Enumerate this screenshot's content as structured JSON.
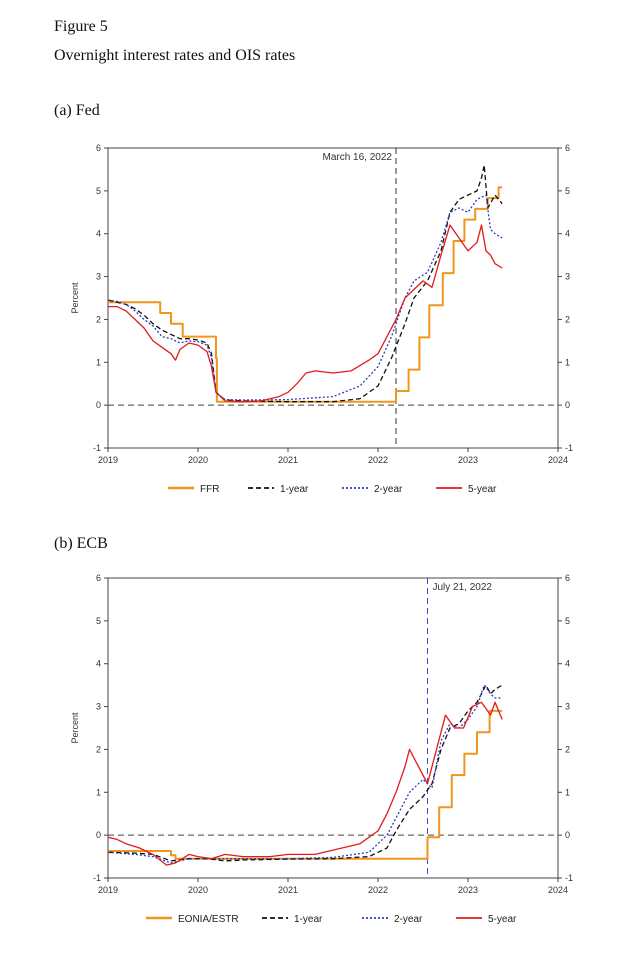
{
  "figure": {
    "number": "Figure 5",
    "caption": "Overnight interest rates and OIS rates"
  },
  "panels": {
    "fed_title": "(a) Fed",
    "ecb_title": "(b) ECB"
  },
  "colors": {
    "policy": "#f0961e",
    "one_year": "#111111",
    "two_year": "#2d3bbf",
    "five_year": "#e01c1c",
    "annot_fed": "#333333",
    "annot_ecb": "#3b4cc0"
  },
  "chart_data": [
    {
      "id": "fed",
      "type": "line",
      "title": "(a) Fed",
      "xlabel": "",
      "ylabel": "Percent",
      "xlim": [
        2019,
        2024
      ],
      "ylim": [
        -1,
        6
      ],
      "xticks": [
        "2019",
        "2020",
        "2021",
        "2022",
        "2023",
        "2024"
      ],
      "yticks": [
        "-1",
        "0",
        "1",
        "2",
        "3",
        "4",
        "5",
        "6"
      ],
      "annotation": {
        "label": "March 16, 2022",
        "x": 2022.2
      },
      "legend": [
        "FFR",
        "1-year",
        "2-year",
        "5-year"
      ],
      "series": [
        {
          "name": "FFR",
          "style": "solid",
          "points": [
            [
              2019.0,
              2.4
            ],
            [
              2019.2,
              2.4
            ],
            [
              2019.2,
              2.4
            ],
            [
              2019.58,
              2.4
            ],
            [
              2019.58,
              2.15
            ],
            [
              2019.7,
              2.15
            ],
            [
              2019.7,
              1.9
            ],
            [
              2019.83,
              1.9
            ],
            [
              2019.83,
              1.6
            ],
            [
              2020.2,
              1.6
            ],
            [
              2020.2,
              1.1
            ],
            [
              2020.21,
              1.1
            ],
            [
              2020.21,
              0.08
            ],
            [
              2022.2,
              0.08
            ],
            [
              2022.2,
              0.33
            ],
            [
              2022.34,
              0.33
            ],
            [
              2022.34,
              0.83
            ],
            [
              2022.46,
              0.83
            ],
            [
              2022.46,
              1.58
            ],
            [
              2022.57,
              1.58
            ],
            [
              2022.57,
              2.33
            ],
            [
              2022.72,
              2.33
            ],
            [
              2022.72,
              3.08
            ],
            [
              2022.84,
              3.08
            ],
            [
              2022.84,
              3.83
            ],
            [
              2022.96,
              3.83
            ],
            [
              2022.96,
              4.33
            ],
            [
              2023.08,
              4.33
            ],
            [
              2023.08,
              4.58
            ],
            [
              2023.22,
              4.58
            ],
            [
              2023.22,
              4.83
            ],
            [
              2023.34,
              4.83
            ],
            [
              2023.34,
              5.08
            ],
            [
              2023.38,
              5.08
            ]
          ]
        },
        {
          "name": "1-year",
          "style": "dash",
          "points": [
            [
              2019.0,
              2.45
            ],
            [
              2019.1,
              2.4
            ],
            [
              2019.2,
              2.35
            ],
            [
              2019.3,
              2.25
            ],
            [
              2019.4,
              2.1
            ],
            [
              2019.5,
              1.9
            ],
            [
              2019.6,
              1.75
            ],
            [
              2019.7,
              1.65
            ],
            [
              2019.8,
              1.55
            ],
            [
              2019.9,
              1.55
            ],
            [
              2020.0,
              1.52
            ],
            [
              2020.1,
              1.45
            ],
            [
              2020.15,
              1.2
            ],
            [
              2020.2,
              0.3
            ],
            [
              2020.3,
              0.12
            ],
            [
              2020.5,
              0.1
            ],
            [
              2021.0,
              0.08
            ],
            [
              2021.5,
              0.08
            ],
            [
              2021.8,
              0.15
            ],
            [
              2022.0,
              0.45
            ],
            [
              2022.15,
              1.1
            ],
            [
              2022.3,
              1.9
            ],
            [
              2022.4,
              2.5
            ],
            [
              2022.55,
              2.9
            ],
            [
              2022.7,
              3.6
            ],
            [
              2022.8,
              4.5
            ],
            [
              2022.9,
              4.8
            ],
            [
              2023.0,
              4.9
            ],
            [
              2023.1,
              5.0
            ],
            [
              2023.15,
              5.3
            ],
            [
              2023.18,
              5.6
            ],
            [
              2023.22,
              4.6
            ],
            [
              2023.3,
              4.9
            ],
            [
              2023.38,
              4.7
            ]
          ]
        },
        {
          "name": "2-year",
          "style": "dot",
          "points": [
            [
              2019.0,
              2.45
            ],
            [
              2019.1,
              2.42
            ],
            [
              2019.2,
              2.35
            ],
            [
              2019.3,
              2.2
            ],
            [
              2019.4,
              2.0
            ],
            [
              2019.5,
              1.85
            ],
            [
              2019.6,
              1.6
            ],
            [
              2019.7,
              1.55
            ],
            [
              2019.8,
              1.45
            ],
            [
              2019.9,
              1.5
            ],
            [
              2020.0,
              1.48
            ],
            [
              2020.1,
              1.4
            ],
            [
              2020.15,
              1.1
            ],
            [
              2020.2,
              0.3
            ],
            [
              2020.3,
              0.13
            ],
            [
              2020.5,
              0.12
            ],
            [
              2021.0,
              0.13
            ],
            [
              2021.5,
              0.2
            ],
            [
              2021.8,
              0.45
            ],
            [
              2022.0,
              0.9
            ],
            [
              2022.15,
              1.6
            ],
            [
              2022.3,
              2.5
            ],
            [
              2022.4,
              2.9
            ],
            [
              2022.55,
              3.1
            ],
            [
              2022.7,
              3.8
            ],
            [
              2022.8,
              4.5
            ],
            [
              2022.9,
              4.6
            ],
            [
              2023.0,
              4.5
            ],
            [
              2023.1,
              4.8
            ],
            [
              2023.2,
              4.9
            ],
            [
              2023.25,
              4.1
            ],
            [
              2023.3,
              4.0
            ],
            [
              2023.38,
              3.9
            ]
          ]
        },
        {
          "name": "5-year",
          "style": "solid",
          "points": [
            [
              2019.0,
              2.3
            ],
            [
              2019.1,
              2.3
            ],
            [
              2019.2,
              2.2
            ],
            [
              2019.3,
              2.0
            ],
            [
              2019.4,
              1.8
            ],
            [
              2019.5,
              1.5
            ],
            [
              2019.6,
              1.35
            ],
            [
              2019.7,
              1.2
            ],
            [
              2019.75,
              1.05
            ],
            [
              2019.8,
              1.3
            ],
            [
              2019.9,
              1.45
            ],
            [
              2020.0,
              1.4
            ],
            [
              2020.1,
              1.25
            ],
            [
              2020.15,
              0.9
            ],
            [
              2020.2,
              0.3
            ],
            [
              2020.3,
              0.1
            ],
            [
              2020.5,
              0.08
            ],
            [
              2020.7,
              0.1
            ],
            [
              2020.9,
              0.2
            ],
            [
              2021.0,
              0.3
            ],
            [
              2021.1,
              0.5
            ],
            [
              2021.2,
              0.75
            ],
            [
              2021.3,
              0.8
            ],
            [
              2021.5,
              0.75
            ],
            [
              2021.7,
              0.8
            ],
            [
              2021.9,
              1.05
            ],
            [
              2022.0,
              1.2
            ],
            [
              2022.1,
              1.6
            ],
            [
              2022.2,
              2.0
            ],
            [
              2022.3,
              2.5
            ],
            [
              2022.4,
              2.7
            ],
            [
              2022.5,
              2.9
            ],
            [
              2022.6,
              2.75
            ],
            [
              2022.7,
              3.5
            ],
            [
              2022.8,
              4.2
            ],
            [
              2022.9,
              3.9
            ],
            [
              2023.0,
              3.6
            ],
            [
              2023.1,
              3.8
            ],
            [
              2023.15,
              4.2
            ],
            [
              2023.2,
              3.6
            ],
            [
              2023.25,
              3.5
            ],
            [
              2023.3,
              3.3
            ],
            [
              2023.38,
              3.2
            ]
          ]
        }
      ]
    },
    {
      "id": "ecb",
      "type": "line",
      "title": "(b) ECB",
      "xlabel": "",
      "ylabel": "Percent",
      "xlim": [
        2019,
        2024
      ],
      "ylim": [
        -1,
        6
      ],
      "xticks": [
        "2019",
        "2020",
        "2021",
        "2022",
        "2023",
        "2024"
      ],
      "yticks": [
        "-1",
        "0",
        "1",
        "2",
        "3",
        "4",
        "5",
        "6"
      ],
      "annotation": {
        "label": "July 21, 2022",
        "x": 2022.55
      },
      "legend": [
        "EONIA/ESTR",
        "1-year",
        "2-year",
        "5-year"
      ],
      "series": [
        {
          "name": "EONIA/ESTR",
          "style": "solid",
          "points": [
            [
              2019.0,
              -0.37
            ],
            [
              2019.7,
              -0.37
            ],
            [
              2019.7,
              -0.47
            ],
            [
              2019.75,
              -0.47
            ],
            [
              2019.75,
              -0.55
            ],
            [
              2022.55,
              -0.55
            ],
            [
              2022.55,
              -0.05
            ],
            [
              2022.68,
              -0.05
            ],
            [
              2022.68,
              0.65
            ],
            [
              2022.82,
              0.65
            ],
            [
              2022.82,
              1.4
            ],
            [
              2022.96,
              1.4
            ],
            [
              2022.96,
              1.9
            ],
            [
              2023.1,
              1.9
            ],
            [
              2023.1,
              2.4
            ],
            [
              2023.24,
              2.4
            ],
            [
              2023.24,
              2.9
            ],
            [
              2023.38,
              2.9
            ]
          ]
        },
        {
          "name": "1-year",
          "style": "dash",
          "points": [
            [
              2019.0,
              -0.4
            ],
            [
              2019.3,
              -0.42
            ],
            [
              2019.5,
              -0.45
            ],
            [
              2019.7,
              -0.6
            ],
            [
              2019.9,
              -0.55
            ],
            [
              2020.1,
              -0.55
            ],
            [
              2020.3,
              -0.6
            ],
            [
              2020.5,
              -0.58
            ],
            [
              2021.0,
              -0.56
            ],
            [
              2021.5,
              -0.55
            ],
            [
              2021.9,
              -0.5
            ],
            [
              2022.1,
              -0.3
            ],
            [
              2022.2,
              0.1
            ],
            [
              2022.35,
              0.6
            ],
            [
              2022.5,
              0.9
            ],
            [
              2022.6,
              1.2
            ],
            [
              2022.7,
              2.0
            ],
            [
              2022.8,
              2.5
            ],
            [
              2022.9,
              2.6
            ],
            [
              2023.0,
              2.9
            ],
            [
              2023.1,
              3.1
            ],
            [
              2023.2,
              3.5
            ],
            [
              2023.25,
              3.3
            ],
            [
              2023.3,
              3.4
            ],
            [
              2023.38,
              3.5
            ]
          ]
        },
        {
          "name": "2-year",
          "style": "dot",
          "points": [
            [
              2019.0,
              -0.4
            ],
            [
              2019.3,
              -0.45
            ],
            [
              2019.5,
              -0.5
            ],
            [
              2019.7,
              -0.65
            ],
            [
              2019.9,
              -0.55
            ],
            [
              2020.1,
              -0.55
            ],
            [
              2020.3,
              -0.55
            ],
            [
              2020.5,
              -0.55
            ],
            [
              2021.0,
              -0.55
            ],
            [
              2021.5,
              -0.52
            ],
            [
              2021.9,
              -0.4
            ],
            [
              2022.1,
              0.0
            ],
            [
              2022.2,
              0.4
            ],
            [
              2022.35,
              1.0
            ],
            [
              2022.5,
              1.3
            ],
            [
              2022.6,
              1.1
            ],
            [
              2022.7,
              2.2
            ],
            [
              2022.8,
              2.6
            ],
            [
              2022.9,
              2.5
            ],
            [
              2023.0,
              2.7
            ],
            [
              2023.1,
              3.0
            ],
            [
              2023.18,
              3.5
            ],
            [
              2023.25,
              3.3
            ],
            [
              2023.3,
              3.2
            ],
            [
              2023.38,
              3.2
            ]
          ]
        },
        {
          "name": "5-year",
          "style": "solid",
          "points": [
            [
              2019.0,
              -0.05
            ],
            [
              2019.1,
              -0.1
            ],
            [
              2019.2,
              -0.2
            ],
            [
              2019.35,
              -0.3
            ],
            [
              2019.5,
              -0.45
            ],
            [
              2019.65,
              -0.7
            ],
            [
              2019.75,
              -0.65
            ],
            [
              2019.9,
              -0.45
            ],
            [
              2020.0,
              -0.5
            ],
            [
              2020.15,
              -0.55
            ],
            [
              2020.3,
              -0.45
            ],
            [
              2020.5,
              -0.5
            ],
            [
              2020.8,
              -0.5
            ],
            [
              2021.0,
              -0.45
            ],
            [
              2021.3,
              -0.45
            ],
            [
              2021.6,
              -0.3
            ],
            [
              2021.8,
              -0.2
            ],
            [
              2022.0,
              0.1
            ],
            [
              2022.1,
              0.5
            ],
            [
              2022.2,
              1.0
            ],
            [
              2022.3,
              1.6
            ],
            [
              2022.35,
              2.0
            ],
            [
              2022.45,
              1.6
            ],
            [
              2022.55,
              1.2
            ],
            [
              2022.65,
              2.0
            ],
            [
              2022.75,
              2.8
            ],
            [
              2022.85,
              2.5
            ],
            [
              2022.95,
              2.5
            ],
            [
              2023.05,
              3.0
            ],
            [
              2023.15,
              3.1
            ],
            [
              2023.25,
              2.8
            ],
            [
              2023.3,
              3.1
            ],
            [
              2023.38,
              2.7
            ]
          ]
        }
      ]
    }
  ]
}
